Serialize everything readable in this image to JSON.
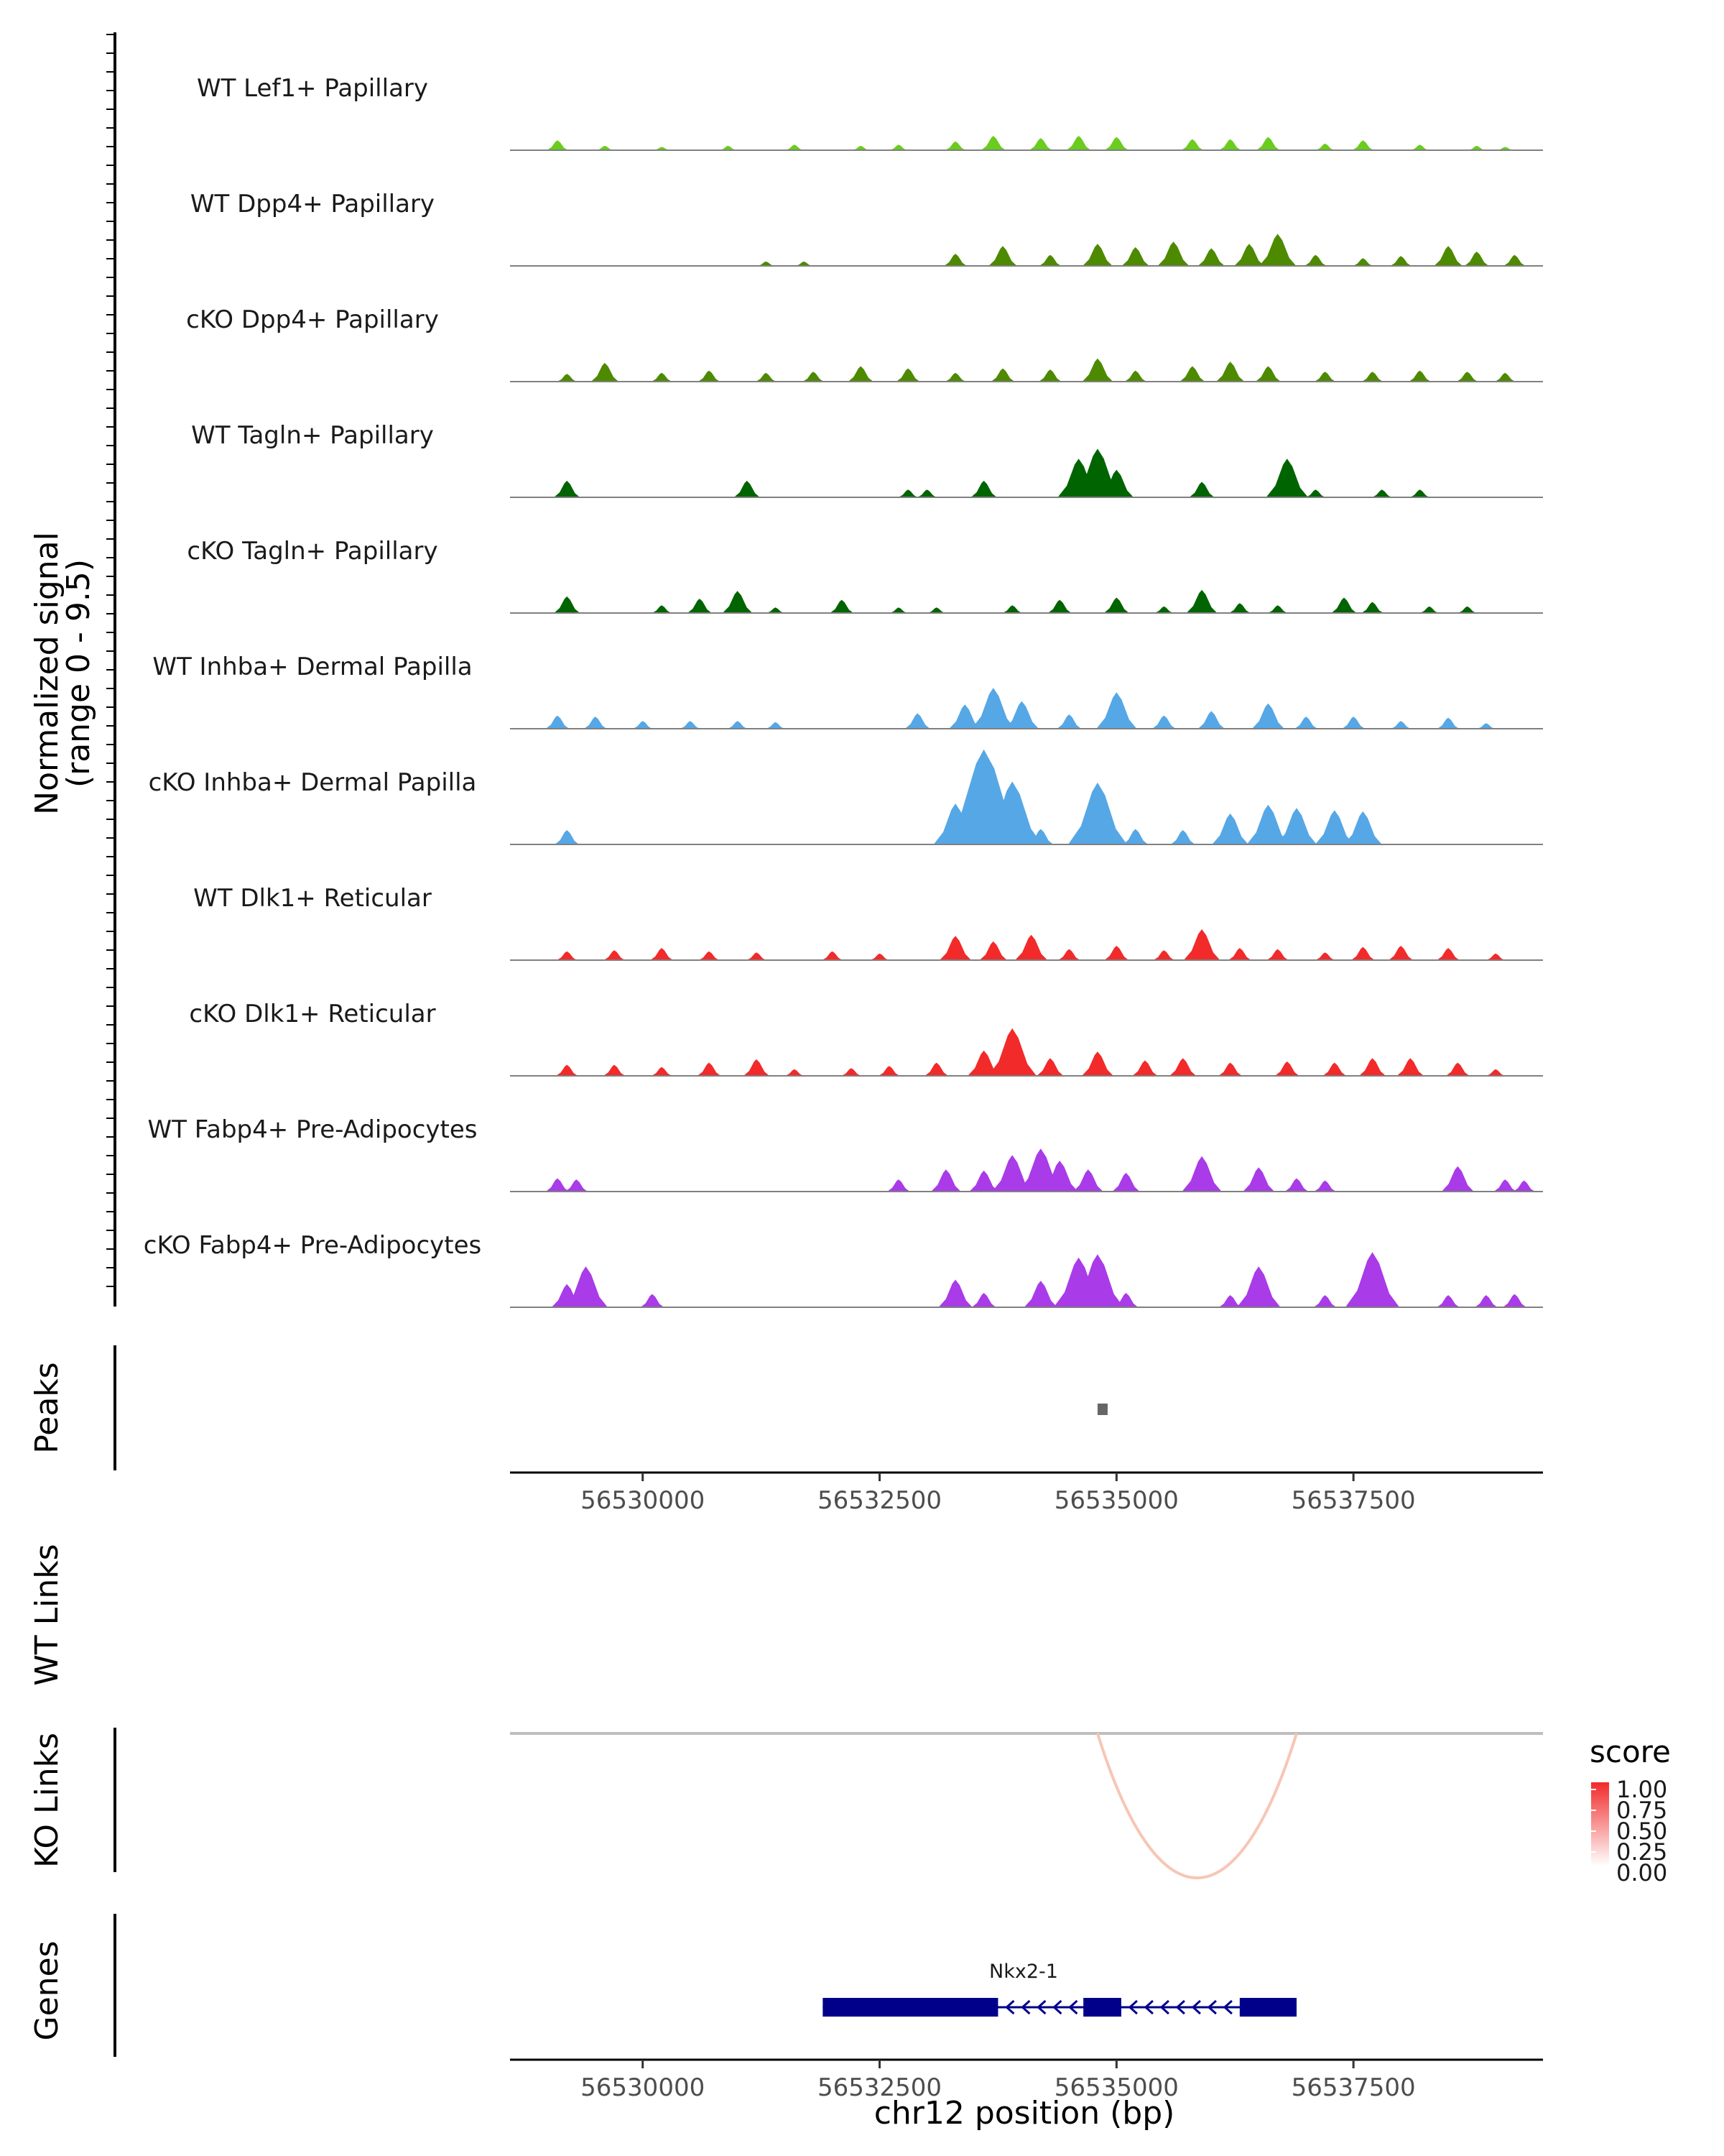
{
  "chart_data": {
    "type": "area",
    "title": "",
    "x_label": "chr12 position (bp)",
    "x_range": [
      56528600,
      56539500
    ],
    "x_ticks": [
      "56530000",
      "56532500",
      "56535000",
      "56537500"
    ],
    "y_label_line1": "Normalized signal",
    "y_label_line2": "(range 0 - 9.5)",
    "y_range": [
      0,
      9.5
    ],
    "tracks": [
      {
        "name": "WT Lef1+ Papillary",
        "color": "#6ACD1D",
        "peaks": [
          [
            56529100,
            0.9
          ],
          [
            56529600,
            0.4
          ],
          [
            56530200,
            0.3
          ],
          [
            56530900,
            0.4
          ],
          [
            56531600,
            0.5
          ],
          [
            56532300,
            0.4
          ],
          [
            56532700,
            0.5
          ],
          [
            56533300,
            0.8
          ],
          [
            56533700,
            1.3
          ],
          [
            56534200,
            1.1
          ],
          [
            56534600,
            1.3
          ],
          [
            56535000,
            1.2
          ],
          [
            56535800,
            1.0
          ],
          [
            56536200,
            1.0
          ],
          [
            56536600,
            1.2
          ],
          [
            56537200,
            0.6
          ],
          [
            56537600,
            0.9
          ],
          [
            56538200,
            0.5
          ],
          [
            56538800,
            0.4
          ],
          [
            56539100,
            0.3
          ]
        ]
      },
      {
        "name": "WT Dpp4+ Papillary",
        "color": "#4D8A00",
        "peaks": [
          [
            56531300,
            0.4
          ],
          [
            56531700,
            0.4
          ],
          [
            56533300,
            1.1
          ],
          [
            56533800,
            1.8
          ],
          [
            56534300,
            1.0
          ],
          [
            56534800,
            2.0
          ],
          [
            56535200,
            1.7
          ],
          [
            56535600,
            2.2
          ],
          [
            56536000,
            1.6
          ],
          [
            56536400,
            2.0
          ],
          [
            56536700,
            2.9
          ],
          [
            56537100,
            1.0
          ],
          [
            56537600,
            0.7
          ],
          [
            56538000,
            0.9
          ],
          [
            56538500,
            1.8
          ],
          [
            56538800,
            1.3
          ],
          [
            56539200,
            1.0
          ]
        ]
      },
      {
        "name": "cKO Dpp4+ Papillary",
        "color": "#4D8A00",
        "peaks": [
          [
            56529200,
            0.7
          ],
          [
            56529600,
            1.7
          ],
          [
            56530200,
            0.8
          ],
          [
            56530700,
            1.0
          ],
          [
            56531300,
            0.8
          ],
          [
            56531800,
            0.9
          ],
          [
            56532300,
            1.4
          ],
          [
            56532800,
            1.2
          ],
          [
            56533300,
            0.8
          ],
          [
            56533800,
            1.2
          ],
          [
            56534300,
            1.1
          ],
          [
            56534800,
            2.1
          ],
          [
            56535200,
            1.0
          ],
          [
            56535800,
            1.4
          ],
          [
            56536200,
            1.8
          ],
          [
            56536600,
            1.4
          ],
          [
            56537200,
            0.9
          ],
          [
            56537700,
            0.9
          ],
          [
            56538200,
            1.0
          ],
          [
            56538700,
            0.9
          ],
          [
            56539100,
            0.8
          ]
        ]
      },
      {
        "name": "WT Tagln+ Papillary",
        "color": "#006400",
        "peaks": [
          [
            56529200,
            1.5
          ],
          [
            56531100,
            1.5
          ],
          [
            56532800,
            0.7
          ],
          [
            56533000,
            0.7
          ],
          [
            56533600,
            1.5
          ],
          [
            56534600,
            3.5
          ],
          [
            56534800,
            4.4
          ],
          [
            56535000,
            2.5
          ],
          [
            56535900,
            1.4
          ],
          [
            56536800,
            3.5
          ],
          [
            56537100,
            0.7
          ],
          [
            56537800,
            0.7
          ],
          [
            56538200,
            0.7
          ]
        ]
      },
      {
        "name": "cKO Tagln+ Papillary",
        "color": "#006400",
        "peaks": [
          [
            56529200,
            1.5
          ],
          [
            56530200,
            0.7
          ],
          [
            56530600,
            1.3
          ],
          [
            56531000,
            2.0
          ],
          [
            56531400,
            0.5
          ],
          [
            56532100,
            1.2
          ],
          [
            56532700,
            0.5
          ],
          [
            56533100,
            0.5
          ],
          [
            56533900,
            0.7
          ],
          [
            56534400,
            1.2
          ],
          [
            56535000,
            1.4
          ],
          [
            56535500,
            0.6
          ],
          [
            56535900,
            2.1
          ],
          [
            56536300,
            0.9
          ],
          [
            56536700,
            0.7
          ],
          [
            56537400,
            1.4
          ],
          [
            56537700,
            1.0
          ],
          [
            56538300,
            0.6
          ],
          [
            56538700,
            0.6
          ]
        ]
      },
      {
        "name": "WT Inhba+ Dermal Papilla",
        "color": "#56A7E6",
        "peaks": [
          [
            56529100,
            1.2
          ],
          [
            56529500,
            1.1
          ],
          [
            56530000,
            0.7
          ],
          [
            56530500,
            0.7
          ],
          [
            56531000,
            0.7
          ],
          [
            56531400,
            0.6
          ],
          [
            56532900,
            1.4
          ],
          [
            56533400,
            2.2
          ],
          [
            56533700,
            3.7
          ],
          [
            56534000,
            2.5
          ],
          [
            56534500,
            1.3
          ],
          [
            56535000,
            3.3
          ],
          [
            56535500,
            1.2
          ],
          [
            56536000,
            1.6
          ],
          [
            56536600,
            2.3
          ],
          [
            56537000,
            1.1
          ],
          [
            56537500,
            1.1
          ],
          [
            56538000,
            0.7
          ],
          [
            56538500,
            1.0
          ],
          [
            56538900,
            0.5
          ]
        ]
      },
      {
        "name": "cKO Inhba+ Dermal Papilla",
        "color": "#56A7E6",
        "peaks": [
          [
            56529200,
            1.3
          ],
          [
            56533300,
            3.7
          ],
          [
            56533600,
            8.6
          ],
          [
            56533900,
            5.7
          ],
          [
            56534200,
            1.4
          ],
          [
            56534800,
            5.6
          ],
          [
            56535200,
            1.4
          ],
          [
            56535700,
            1.3
          ],
          [
            56536200,
            2.8
          ],
          [
            56536600,
            3.6
          ],
          [
            56536900,
            3.3
          ],
          [
            56537300,
            3.1
          ],
          [
            56537600,
            3.0
          ]
        ]
      },
      {
        "name": "WT Dlk1+ Reticular",
        "color": "#F22A2A",
        "peaks": [
          [
            56529200,
            0.8
          ],
          [
            56529700,
            0.9
          ],
          [
            56530200,
            1.1
          ],
          [
            56530700,
            0.8
          ],
          [
            56531200,
            0.7
          ],
          [
            56532000,
            0.8
          ],
          [
            56532500,
            0.6
          ],
          [
            56533300,
            2.2
          ],
          [
            56533700,
            1.7
          ],
          [
            56534100,
            2.3
          ],
          [
            56534500,
            1.0
          ],
          [
            56535000,
            1.3
          ],
          [
            56535500,
            0.9
          ],
          [
            56535900,
            2.8
          ],
          [
            56536300,
            1.1
          ],
          [
            56536700,
            1.0
          ],
          [
            56537200,
            0.7
          ],
          [
            56537600,
            1.2
          ],
          [
            56538000,
            1.3
          ],
          [
            56538500,
            1.1
          ],
          [
            56539000,
            0.6
          ]
        ]
      },
      {
        "name": "cKO Dlk1+ Reticular",
        "color": "#F22A2A",
        "peaks": [
          [
            56529200,
            1.0
          ],
          [
            56529700,
            1.0
          ],
          [
            56530200,
            0.8
          ],
          [
            56530700,
            1.2
          ],
          [
            56531200,
            1.5
          ],
          [
            56531600,
            0.6
          ],
          [
            56532200,
            0.7
          ],
          [
            56532600,
            0.9
          ],
          [
            56533100,
            1.2
          ],
          [
            56533600,
            2.3
          ],
          [
            56533900,
            4.3
          ],
          [
            56534300,
            1.6
          ],
          [
            56534800,
            2.2
          ],
          [
            56535300,
            1.4
          ],
          [
            56535700,
            1.6
          ],
          [
            56536200,
            1.2
          ],
          [
            56536800,
            1.3
          ],
          [
            56537300,
            1.2
          ],
          [
            56537700,
            1.6
          ],
          [
            56538100,
            1.6
          ],
          [
            56538600,
            1.2
          ],
          [
            56539000,
            0.6
          ]
        ]
      },
      {
        "name": "WT Fabp4+ Pre-Adipocytes",
        "color": "#A93BE8",
        "peaks": [
          [
            56529100,
            1.2
          ],
          [
            56529300,
            1.1
          ],
          [
            56532700,
            1.1
          ],
          [
            56533200,
            2.0
          ],
          [
            56533600,
            1.9
          ],
          [
            56533900,
            3.3
          ],
          [
            56534200,
            3.9
          ],
          [
            56534400,
            2.8
          ],
          [
            56534700,
            2.0
          ],
          [
            56535100,
            1.7
          ],
          [
            56535900,
            3.2
          ],
          [
            56536500,
            2.2
          ],
          [
            56536900,
            1.2
          ],
          [
            56537200,
            1.0
          ],
          [
            56538600,
            2.3
          ],
          [
            56539100,
            1.1
          ],
          [
            56539300,
            1.0
          ]
        ]
      },
      {
        "name": "cKO Fabp4+ Pre-Adipocytes",
        "color": "#A93BE8",
        "peaks": [
          [
            56529200,
            2.1
          ],
          [
            56529400,
            3.7
          ],
          [
            56530100,
            1.2
          ],
          [
            56533300,
            2.5
          ],
          [
            56533600,
            1.3
          ],
          [
            56534200,
            2.4
          ],
          [
            56534600,
            4.5
          ],
          [
            56534800,
            4.8
          ],
          [
            56535100,
            1.3
          ],
          [
            56536200,
            1.1
          ],
          [
            56536500,
            3.7
          ],
          [
            56537200,
            1.1
          ],
          [
            56537700,
            5.0
          ],
          [
            56538500,
            1.1
          ],
          [
            56538900,
            1.1
          ],
          [
            56539200,
            1.2
          ]
        ]
      }
    ],
    "peaks_panel": {
      "label": "Peaks",
      "regions": [
        [
          56534800,
          56534900
        ]
      ]
    },
    "wt_links": {
      "label": "WT Links",
      "links": []
    },
    "ko_links": {
      "label": "KO Links",
      "links": [
        {
          "start": 56534800,
          "end": 56536900,
          "score": 0.25
        }
      ]
    },
    "score_legend": {
      "title": "score",
      "labels": [
        "1.00",
        "0.75",
        "0.50",
        "0.25",
        "0.00"
      ],
      "low_color": "#FFFFFF",
      "high_color": "#F22A2A"
    },
    "genes": {
      "label": "Genes",
      "gene_name": "Nkx2-1",
      "strand": "-",
      "span": [
        56531900,
        56536900
      ],
      "exons": [
        [
          56531900,
          56533750
        ],
        [
          56534650,
          56535050
        ],
        [
          56536300,
          56536900
        ]
      ],
      "color": "#00008B"
    }
  }
}
